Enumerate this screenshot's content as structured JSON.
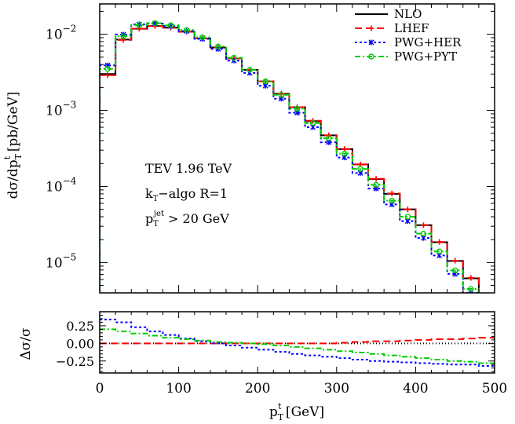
{
  "chart_data": [
    {
      "type": "line",
      "panel": "main",
      "ylabel": "dσ/dp_T^t [pb/GeV]",
      "y_scale": "log",
      "ylim": [
        4e-06,
        0.025
      ],
      "xlim": [
        0,
        500
      ],
      "y_ticks": [
        {
          "value": 1e-05,
          "base": "10",
          "exp": "−5"
        },
        {
          "value": 0.0001,
          "base": "10",
          "exp": "−4"
        },
        {
          "value": 0.001,
          "base": "10",
          "exp": "−3"
        },
        {
          "value": 0.01,
          "base": "10",
          "exp": "−2"
        }
      ],
      "bin_edges": [
        0,
        20,
        40,
        60,
        80,
        100,
        120,
        140,
        160,
        180,
        200,
        220,
        240,
        260,
        280,
        300,
        320,
        340,
        360,
        380,
        400,
        420,
        440,
        460,
        480,
        500
      ],
      "series": [
        {
          "name": "NLO",
          "color": "#000000",
          "dash": "",
          "marker": "none",
          "values": [
            0.003,
            0.0085,
            0.0118,
            0.0128,
            0.0122,
            0.0108,
            0.0088,
            0.0067,
            0.0048,
            0.0034,
            0.0024,
            0.00165,
            0.0011,
            0.00072,
            0.00047,
            0.00031,
            0.000195,
            0.000125,
            8e-05,
            5e-05,
            3.1e-05,
            1.85e-05,
            1.05e-05,
            6.2e-06,
            3.4e-06
          ]
        },
        {
          "name": "LHEF",
          "color": "#ff0000",
          "dash": "9,5",
          "marker": "plus",
          "values": [
            0.0029,
            0.0084,
            0.0118,
            0.0128,
            0.0122,
            0.0108,
            0.0088,
            0.0067,
            0.0048,
            0.0034,
            0.0024,
            0.00166,
            0.0011,
            0.00073,
            0.00047,
            0.00031,
            0.000195,
            0.000126,
            8.1e-05,
            5e-05,
            3.1e-05,
            1.87e-05,
            1.06e-05,
            6.3e-06,
            3.6e-06
          ]
        },
        {
          "name": "PWG+HER",
          "color": "#0000ff",
          "dash": "3,3",
          "marker": "star",
          "values": [
            0.0039,
            0.0099,
            0.0135,
            0.0138,
            0.0128,
            0.011,
            0.0087,
            0.0064,
            0.0045,
            0.0031,
            0.0021,
            0.00142,
            0.00093,
            0.0006,
            0.00038,
            0.00024,
            0.00015,
            9.4e-05,
            5.8e-05,
            3.5e-05,
            2.1e-05,
            1.24e-05,
            7.1e-06,
            4e-06,
            2.2e-06
          ]
        },
        {
          "name": "PWG+PYT",
          "color": "#00cc00",
          "dash": "7,3,2,3",
          "marker": "circle",
          "values": [
            0.0035,
            0.0094,
            0.0132,
            0.014,
            0.0131,
            0.0114,
            0.0091,
            0.0069,
            0.0049,
            0.0034,
            0.0024,
            0.0016,
            0.00105,
            0.00068,
            0.00043,
            0.00027,
            0.00017,
            0.000105,
            6.5e-05,
            4e-05,
            2.4e-05,
            1.4e-05,
            7.9e-06,
            4.5e-06,
            2.5e-06
          ]
        }
      ],
      "legend_position": "top-right",
      "annotations": [
        {
          "text": "TEV 1.96 TeV"
        },
        {
          "text": "k_T−algo R=1"
        },
        {
          "text": "p_T^jet > 20 GeV"
        }
      ]
    },
    {
      "type": "line",
      "panel": "ratio",
      "ylabel": "Δσ/σ",
      "xlabel": "p_T^t [GeV]",
      "xlim": [
        0,
        500
      ],
      "ylim": [
        -0.42,
        0.45
      ],
      "x_ticks": [
        "0",
        "100",
        "200",
        "300",
        "400",
        "500"
      ],
      "y_ticks": [
        "0.25",
        "0.00",
        "−0.25"
      ],
      "x": [
        0,
        20,
        40,
        60,
        80,
        100,
        120,
        140,
        160,
        180,
        200,
        220,
        240,
        260,
        280,
        300,
        320,
        340,
        360,
        380,
        400,
        420,
        440,
        460,
        480,
        500
      ],
      "series": [
        {
          "name": "NLO",
          "color": "#000000",
          "dash": "1,3",
          "values": [
            0,
            0,
            0,
            0,
            0,
            0,
            0,
            0,
            0,
            0,
            0,
            0,
            0,
            0,
            0,
            0,
            0,
            0,
            0,
            0,
            0,
            0,
            0,
            0,
            0,
            0
          ]
        },
        {
          "name": "LHEF",
          "color": "#ff0000",
          "dash": "9,5",
          "values": [
            0,
            0,
            0,
            0,
            0,
            0,
            0,
            0,
            0,
            0,
            0,
            0,
            0,
            0,
            0,
            0.01,
            0.02,
            0.03,
            0.03,
            0.04,
            0.05,
            0.06,
            0.06,
            0.07,
            0.08,
            0.1
          ]
        },
        {
          "name": "PWG+HER",
          "color": "#0000ff",
          "dash": "3,3",
          "values": [
            0.34,
            0.3,
            0.23,
            0.17,
            0.12,
            0.07,
            0.03,
            0.0,
            -0.03,
            -0.06,
            -0.09,
            -0.12,
            -0.15,
            -0.17,
            -0.19,
            -0.21,
            -0.23,
            -0.25,
            -0.26,
            -0.27,
            -0.28,
            -0.29,
            -0.3,
            -0.3,
            -0.32,
            -0.35
          ]
        },
        {
          "name": "PWG+PYT",
          "color": "#00cc00",
          "dash": "7,3,2,3",
          "values": [
            0.2,
            0.17,
            0.14,
            0.11,
            0.08,
            0.06,
            0.04,
            0.02,
            0.01,
            0.0,
            -0.01,
            -0.03,
            -0.05,
            -0.07,
            -0.09,
            -0.11,
            -0.13,
            -0.15,
            -0.17,
            -0.19,
            -0.21,
            -0.23,
            -0.25,
            -0.26,
            -0.28,
            -0.3
          ]
        }
      ]
    }
  ]
}
